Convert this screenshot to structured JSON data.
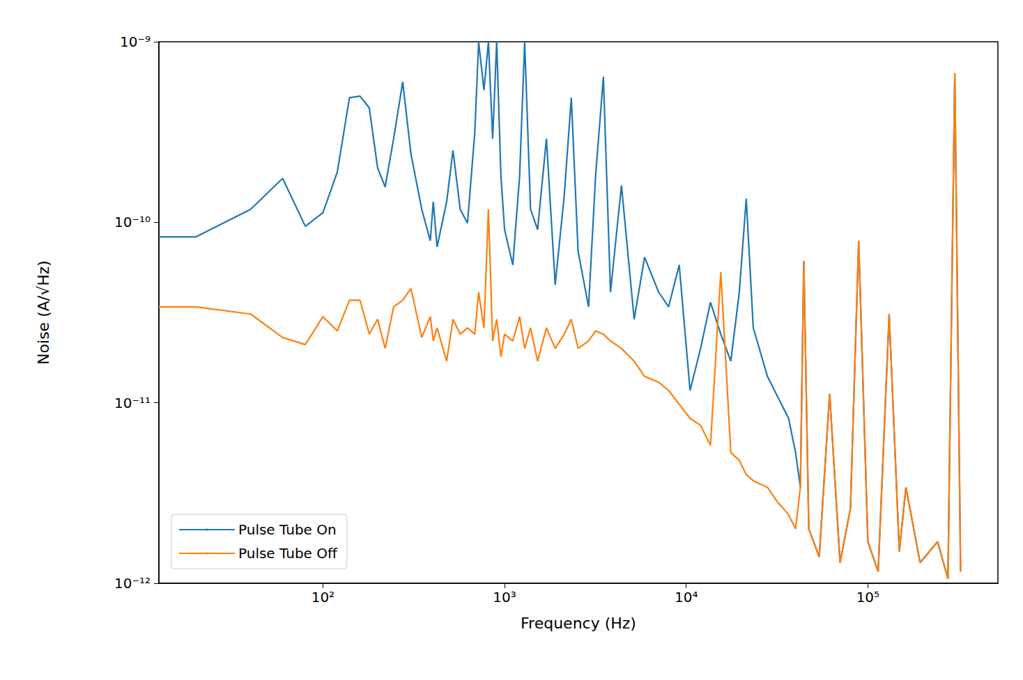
{
  "chart_data": {
    "type": "line",
    "x_label": "Frequency (Hz)",
    "y_label": "Noise (A/√Hz)",
    "log": true,
    "grid": false,
    "legend": "lower left",
    "xlim": [
      12.5,
      520000
    ],
    "ylim": [
      1e-12,
      1e-09
    ],
    "xticks": [
      {
        "value": 100,
        "label": "10²"
      },
      {
        "value": 1000,
        "label": "10³"
      },
      {
        "value": 10000,
        "label": "10⁴"
      },
      {
        "value": 100000,
        "label": "10⁵"
      }
    ],
    "yticks": [
      {
        "value": 1e-12,
        "label": "10⁻¹²"
      },
      {
        "value": 1e-11,
        "label": "10⁻¹¹"
      },
      {
        "value": 1e-10,
        "label": "10⁻¹⁰"
      },
      {
        "value": 1e-09,
        "label": "10⁻⁹"
      }
    ],
    "x": [
      12.5,
      20,
      40,
      60,
      80,
      100,
      120,
      140,
      160,
      180,
      200,
      220,
      245,
      275,
      305,
      350,
      390,
      405,
      425,
      480,
      520,
      570,
      625,
      685,
      720,
      770,
      815,
      860,
      905,
      955,
      1000,
      1110,
      1210,
      1290,
      1390,
      1520,
      1700,
      1900,
      2130,
      2330,
      2540,
      2900,
      3170,
      3500,
      3830,
      4400,
      5170,
      5900,
      7050,
      8000,
      9150,
      10500,
      12000,
      13600,
      15500,
      17600,
      19600,
      21400,
      23400,
      28000,
      32000,
      36600,
      40000,
      42500,
      44400,
      47300,
      54000,
      61600,
      70300,
      80200,
      89000,
      100000,
      114000,
      131000,
      149000,
      162000,
      194000,
      242000,
      276000,
      301000,
      324000
    ],
    "series": [
      {
        "name": "Pulse Tube On",
        "color": "#1f77b4",
        "line_style": "solid",
        "values": [
          8.3e-11,
          8.3e-11,
          1.18e-10,
          1.75e-10,
          9.5e-11,
          1.13e-10,
          1.9e-10,
          4.9e-10,
          5e-10,
          4.3e-10,
          2e-10,
          1.57e-10,
          2.9e-10,
          6e-10,
          2.4e-10,
          1.18e-10,
          7.9e-11,
          1.3e-10,
          7.3e-11,
          1.3e-10,
          2.5e-10,
          1.18e-10,
          9.9e-11,
          3.1e-10,
          1e-09,
          5.4e-10,
          1e-09,
          2.9e-10,
          1e-09,
          1.8e-10,
          9.1e-11,
          5.8e-11,
          1.8e-10,
          1e-09,
          1.18e-10,
          9.1e-11,
          2.9e-10,
          4.5e-11,
          1.4e-10,
          4.9e-10,
          6.9e-11,
          3.4e-11,
          1.8e-10,
          6.4e-10,
          4.1e-11,
          1.6e-10,
          2.9e-11,
          6.4e-11,
          4.1e-11,
          3.4e-11,
          5.8e-11,
          1.17e-11,
          2e-11,
          3.6e-11,
          2.4e-11,
          1.7e-11,
          4.1e-11,
          1.35e-10,
          2.6e-11,
          1.4e-11,
          1.07e-11,
          8.2e-12,
          5.3e-12,
          3.4e-12,
          6.1e-11,
          2e-12,
          1.4e-12,
          1.12e-11,
          1.3e-12,
          2.6e-12,
          7.9e-11,
          1.7e-12,
          1.16e-12,
          3.1e-11,
          1.5e-12,
          3.4e-12,
          1.3e-12,
          1.7e-12,
          1.06e-12,
          6.7e-10,
          1.16e-12
        ]
      },
      {
        "name": "Pulse Tube Off",
        "color": "#ff7f0e",
        "line_style": "solid",
        "values": [
          3.4e-11,
          3.4e-11,
          3.1e-11,
          2.3e-11,
          2.1e-11,
          3e-11,
          2.5e-11,
          3.7e-11,
          3.7e-11,
          2.4e-11,
          2.9e-11,
          2e-11,
          3.4e-11,
          3.7e-11,
          4.3e-11,
          2.3e-11,
          3e-11,
          2.2e-11,
          2.6e-11,
          1.7e-11,
          2.9e-11,
          2.4e-11,
          2.6e-11,
          2.4e-11,
          4.1e-11,
          2.6e-11,
          1.18e-10,
          2.2e-11,
          2.9e-11,
          1.8e-11,
          2.4e-11,
          2.2e-11,
          3e-11,
          2e-11,
          2.6e-11,
          1.7e-11,
          2.6e-11,
          2e-11,
          2.4e-11,
          2.9e-11,
          2e-11,
          2.2e-11,
          2.5e-11,
          2.4e-11,
          2.2e-11,
          2e-11,
          1.7e-11,
          1.4e-11,
          1.3e-11,
          1.17e-11,
          9.8e-12,
          8.2e-12,
          7.5e-12,
          5.8e-12,
          5.3e-11,
          5.3e-12,
          4.8e-12,
          4e-12,
          3.7e-12,
          3.4e-12,
          2.8e-12,
          2.4e-12,
          2e-12,
          3.4e-12,
          6.1e-11,
          2e-12,
          1.4e-12,
          1.12e-11,
          1.3e-12,
          2.6e-12,
          7.9e-11,
          1.7e-12,
          1.16e-12,
          3.1e-11,
          1.5e-12,
          3.4e-12,
          1.3e-12,
          1.7e-12,
          1.06e-12,
          6.7e-10,
          1.16e-12
        ]
      }
    ]
  }
}
